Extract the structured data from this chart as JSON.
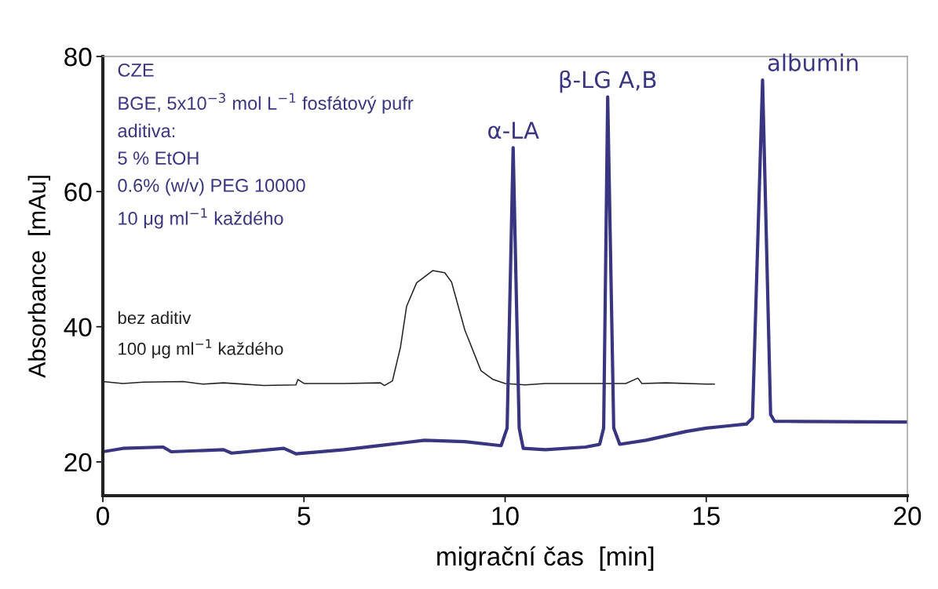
{
  "chart_data": {
    "type": "line",
    "xlabel": "migrační čas  [min]",
    "ylabel": "Absorbance  [mAu]",
    "xlim": [
      0,
      20
    ],
    "xticks": [
      0,
      5,
      10,
      15,
      20
    ],
    "ylim": [
      15,
      80
    ],
    "yticks": [
      20,
      40,
      60,
      80
    ],
    "grid": false,
    "legend": false,
    "marker": "none",
    "line_style": "solid",
    "series": [
      {
        "name": "bez aditiv\n100 μg ml$^{−1}$ každého",
        "color": "#222222",
        "x": [
          0,
          0.5,
          1.0,
          2.0,
          2.5,
          3.0,
          4.0,
          4.8,
          4.85,
          5.0,
          6.0,
          6.9,
          7.0,
          7.2,
          7.4,
          7.55,
          7.8,
          8.2,
          8.5,
          8.67,
          9.0,
          9.4,
          9.7,
          10.0,
          10.5,
          11.0,
          12.0,
          13.0,
          13.3,
          13.4,
          14.0,
          15.0,
          15.2
        ],
        "values": [
          31.9,
          31.6,
          31.8,
          31.9,
          31.5,
          31.7,
          31.3,
          31.4,
          32.2,
          31.6,
          31.6,
          31.7,
          31.3,
          32.0,
          37.0,
          43.0,
          46.5,
          48.3,
          48.0,
          46.6,
          39.5,
          33.5,
          32.2,
          31.6,
          31.4,
          31.6,
          31.6,
          31.6,
          32.4,
          31.6,
          31.7,
          31.5,
          31.5
        ]
      },
      {
        "name": "CZE\nBGE, 5x10$^{−3}$ mol L$^{−1}$ fosfátový pufr\naditiva:\n5 % EtOH\n0.6% (w/v) PEG 10000\n10 μg ml$^{−1}$ každého",
        "color": "#3a3580",
        "x": [
          0,
          0.5,
          1.5,
          1.7,
          3.0,
          3.2,
          4.5,
          4.8,
          6.0,
          7.0,
          8.0,
          9.0,
          9.9,
          10.05,
          10.2,
          10.35,
          10.45,
          11.0,
          12.0,
          12.35,
          12.45,
          12.55,
          12.7,
          12.85,
          13.5,
          14.5,
          15.0,
          15.5,
          16.0,
          16.15,
          16.4,
          16.6,
          16.7,
          17.0,
          20.0
        ],
        "values": [
          21.5,
          22.0,
          22.2,
          21.5,
          21.8,
          21.3,
          22.0,
          21.2,
          21.8,
          22.5,
          23.2,
          23.0,
          22.4,
          25.0,
          66.5,
          25.0,
          22.0,
          21.8,
          22.2,
          22.6,
          25.0,
          74.0,
          25.0,
          22.6,
          23.2,
          24.5,
          25.0,
          25.3,
          25.6,
          26.5,
          76.5,
          27.0,
          26.0,
          26.0,
          25.9
        ]
      }
    ],
    "annotations": [
      {
        "text": "α-LA",
        "x": 10.2,
        "y": 66.5
      },
      {
        "text": "β-LG A,B",
        "x": 12.55,
        "y": 74.0
      },
      {
        "text": "albumin",
        "x": 16.4,
        "y": 76.5
      }
    ]
  }
}
